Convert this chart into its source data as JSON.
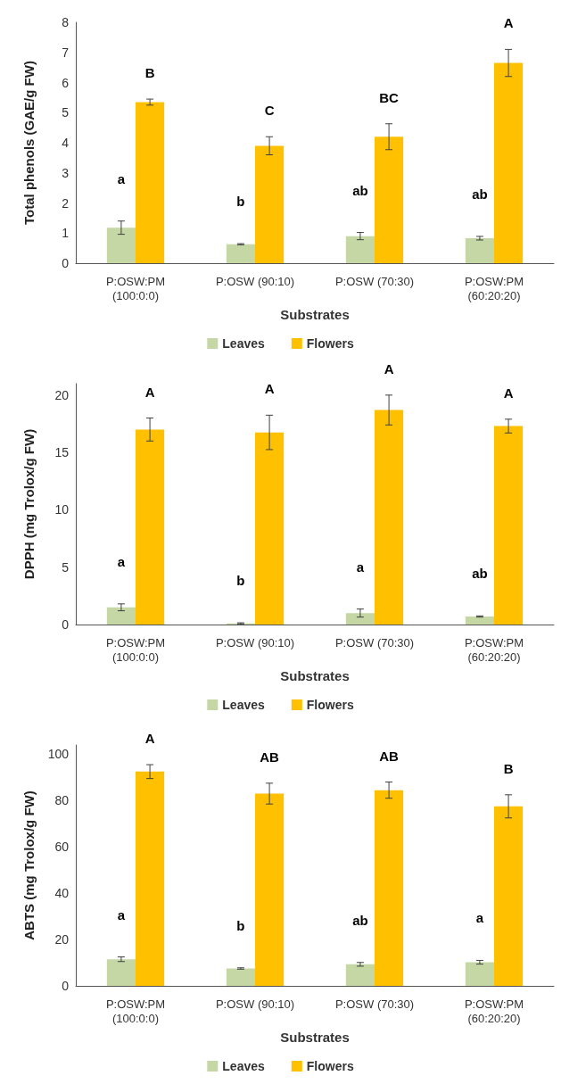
{
  "chart_data": [
    {
      "type": "bar",
      "xlabel": "Substrates",
      "ylabel": "Total phenols (GAE/g FW)",
      "categories": [
        "P:OSW:PM\n(100:0:0)",
        "P:OSW (90:10)",
        "P:OSW (70:30)",
        "P:OSW:PM\n(60:20:20)"
      ],
      "series": [
        {
          "name": "Leaves",
          "color": "#c4d7a4",
          "values": [
            1.18,
            0.63,
            0.9,
            0.83
          ],
          "errors": [
            0.22,
            0.02,
            0.12,
            0.06
          ]
        },
        {
          "name": "Flowers",
          "color": "#ffc000",
          "values": [
            5.35,
            3.9,
            4.2,
            6.65
          ],
          "errors": [
            0.1,
            0.3,
            0.43,
            0.45
          ]
        }
      ],
      "annotations": [
        "a",
        "b",
        "ab",
        "ab",
        "B",
        "C",
        "BC",
        "A"
      ],
      "ylim": [
        0,
        8
      ],
      "yticks": [
        0,
        1,
        2,
        3,
        4,
        5,
        6,
        7,
        8
      ],
      "grid": false,
      "legend": "bottom"
    },
    {
      "type": "bar",
      "xlabel": "Substrates",
      "ylabel": "DPPH (mg Trolox/g FW)",
      "categories": [
        "P:OSW:PM\n(100:0:0)",
        "P:OSW (90:10)",
        "P:OSW (70:30)",
        "P:OSW:PM\n(60:20:20)"
      ],
      "series": [
        {
          "name": "Leaves",
          "color": "#c4d7a4",
          "values": [
            1.5,
            0.1,
            1.0,
            0.7
          ],
          "errors": [
            0.3,
            0.05,
            0.35,
            0.05
          ]
        },
        {
          "name": "Flowers",
          "color": "#ffc000",
          "values": [
            17.0,
            16.75,
            18.7,
            17.3
          ],
          "errors": [
            1.0,
            1.5,
            1.3,
            0.6
          ]
        }
      ],
      "annotations": [
        "a",
        "b",
        "a",
        "ab",
        "A",
        "A",
        "A",
        "A"
      ],
      "ylim": [
        0,
        21
      ],
      "yticks": [
        0,
        5,
        10,
        15,
        20
      ],
      "grid": false,
      "legend": "bottom"
    },
    {
      "type": "bar",
      "xlabel": "Substrates",
      "ylabel": "ABTS (mg Trolox/g FW)",
      "categories": [
        "P:OSW:PM\n(100:0:0)",
        "P:OSW (90:10)",
        "P:OSW (70:30)",
        "P:OSW:PM\n(60:20:20)"
      ],
      "series": [
        {
          "name": "Leaves",
          "color": "#c4d7a4",
          "values": [
            11.5,
            7.5,
            9.3,
            10.2
          ],
          "errors": [
            1.0,
            0.3,
            0.8,
            0.8
          ]
        },
        {
          "name": "Flowers",
          "color": "#ffc000",
          "values": [
            92.5,
            83,
            84.5,
            77.5
          ],
          "errors": [
            3,
            4.5,
            3.5,
            5
          ]
        }
      ],
      "annotations": [
        "a",
        "b",
        "ab",
        "a",
        "A",
        "AB",
        "AB",
        "B"
      ],
      "ylim": [
        0,
        104
      ],
      "yticks": [
        0,
        20,
        40,
        60,
        80,
        100
      ],
      "grid": false,
      "legend": "bottom"
    }
  ]
}
